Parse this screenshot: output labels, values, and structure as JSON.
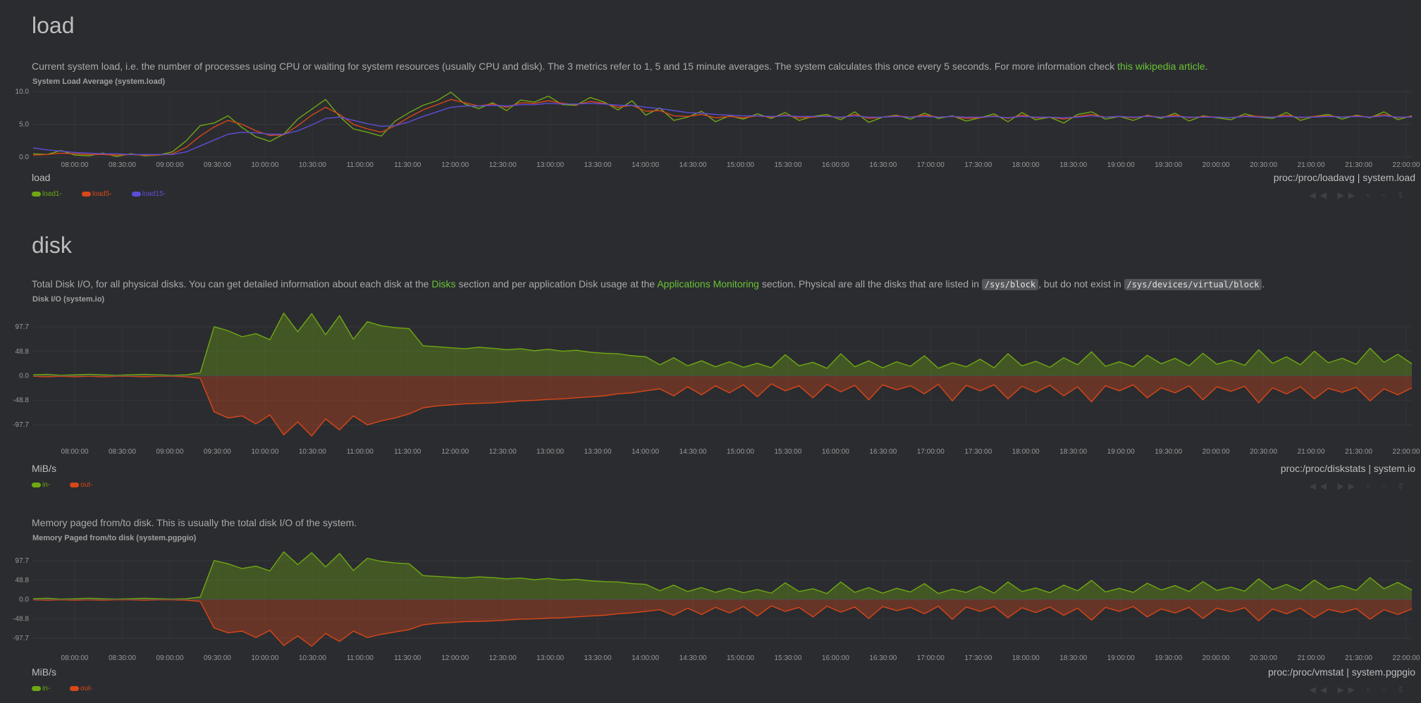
{
  "colors": {
    "green": "#6fa812",
    "red": "#d84718",
    "blue": "#5c4ed6",
    "link": "#69c335"
  },
  "load": {
    "title": "load",
    "desc_before": "Current system load, i.e. the number of processes using CPU or waiting for system resources (usually CPU and disk). The 3 metrics refer to 1, 5 and 15 minute averages. The system calculates this once every 5 seconds. For more information check ",
    "desc_link": "this wikipedia article",
    "desc_after": ".",
    "chart_title": "System Load Average (system.load)",
    "units": "load",
    "source": "proc:/proc/loadavg | system.load",
    "legend": [
      {
        "label": "load1",
        "suffix": " -"
      },
      {
        "label": "load5",
        "suffix": " -"
      },
      {
        "label": "load15",
        "suffix": " -"
      }
    ]
  },
  "disk": {
    "title": "disk",
    "desc_p1": "Total Disk I/O, for all physical disks. You can get detailed information about each disk at the ",
    "desc_link1": "Disks",
    "desc_p2": " section and per application Disk usage at the ",
    "desc_link2": "Applications Monitoring",
    "desc_p3": " section. Physical are all the disks that are listed in ",
    "desc_code1": "/sys/block",
    "desc_p4": ", but do not exist in ",
    "desc_code2": "/sys/devices/virtual/block",
    "desc_p5": ".",
    "chart_title": "Disk I/O (system.io)",
    "units": "MiB/s",
    "source": "proc:/proc/diskstats | system.io",
    "legend": [
      {
        "label": "in",
        "suffix": " -"
      },
      {
        "label": "out",
        "suffix": " -"
      }
    ]
  },
  "pgpgio": {
    "desc": "Memory paged from/to disk. This is usually the total disk I/O of the system.",
    "chart_title": "Memory Paged from/to disk (system.pgpgio)",
    "units": "MiB/s",
    "source": "proc:/proc/vmstat | system.pgpgio",
    "legend": [
      {
        "label": "in",
        "suffix": " -"
      },
      {
        "label": "out",
        "suffix": " -"
      }
    ]
  },
  "toolbar": {
    "glyphs": "◀◀ ▶▶ + − ⇕"
  },
  "chart_data": [
    {
      "type": "line",
      "id": "system.load",
      "title": "System Load Average (system.load)",
      "ylabel": "load",
      "ylim": [
        0,
        10
      ],
      "yticks": [
        "0.0",
        "5.0",
        "10.0"
      ],
      "xlabels": [
        "08:00:00",
        "08:30:00",
        "09:00:00",
        "09:30:00",
        "10:00:00",
        "10:30:00",
        "11:00:00",
        "11:30:00",
        "12:00:00",
        "12:30:00",
        "13:00:00",
        "13:30:00",
        "14:00:00",
        "14:30:00",
        "15:00:00",
        "15:30:00",
        "16:00:00",
        "16:30:00",
        "17:00:00",
        "17:30:00",
        "18:00:00",
        "18:30:00",
        "19:00:00",
        "19:30:00",
        "20:00:00",
        "20:30:00",
        "21:00:00",
        "21:30:00",
        "22:00:00"
      ],
      "series": [
        {
          "name": "load1",
          "color": "#6fa812",
          "values": [
            0.5,
            0.4,
            1.0,
            0.3,
            0.2,
            0.6,
            0.1,
            0.5,
            0.2,
            0.3,
            0.8,
            2.5,
            4.8,
            5.2,
            6.3,
            4.5,
            3.1,
            2.4,
            3.5,
            5.8,
            7.3,
            8.8,
            6.2,
            4.3,
            3.8,
            3.2,
            5.5,
            6.8,
            7.9,
            8.6,
            9.9,
            8.1,
            7.4,
            8.3,
            7.1,
            8.7,
            8.4,
            9.3,
            8.0,
            7.9,
            9.1,
            8.4,
            7.2,
            8.6,
            6.4,
            7.5,
            5.6,
            6.1,
            7.0,
            5.4,
            6.3,
            5.8,
            6.6,
            5.9,
            6.8,
            5.6,
            6.2,
            6.5,
            5.7,
            6.9,
            5.3,
            6.1,
            6.4,
            5.8,
            6.7,
            5.9,
            6.3,
            5.5,
            6.0,
            6.6,
            5.4,
            6.8,
            5.7,
            6.1,
            5.2,
            6.5,
            6.9,
            5.8,
            6.2,
            5.6,
            6.4,
            5.9,
            6.7,
            5.5,
            6.3,
            6.0,
            5.7,
            6.6,
            6.1,
            5.9,
            6.8,
            5.6,
            6.2,
            6.5,
            5.8,
            6.4,
            6.0,
            6.9,
            5.7,
            6.3
          ]
        },
        {
          "name": "load5",
          "color": "#d84718",
          "values": [
            0.3,
            0.4,
            0.6,
            0.5,
            0.4,
            0.4,
            0.3,
            0.4,
            0.3,
            0.3,
            0.5,
            1.5,
            3.2,
            4.6,
            5.6,
            5.0,
            4.0,
            3.3,
            3.4,
            4.8,
            6.4,
            7.6,
            6.5,
            5.0,
            4.3,
            3.8,
            4.8,
            6.1,
            7.2,
            8.0,
            8.8,
            8.3,
            7.8,
            8.1,
            7.6,
            8.3,
            8.2,
            8.6,
            8.2,
            8.0,
            8.5,
            8.2,
            7.6,
            7.9,
            7.0,
            7.1,
            6.3,
            6.2,
            6.5,
            6.0,
            6.2,
            6.0,
            6.3,
            6.1,
            6.4,
            6.0,
            6.1,
            6.3,
            6.0,
            6.5,
            5.9,
            6.1,
            6.3,
            6.1,
            6.4,
            6.1,
            6.2,
            5.9,
            6.0,
            6.3,
            5.9,
            6.4,
            6.0,
            6.1,
            5.8,
            6.2,
            6.5,
            6.1,
            6.2,
            6.0,
            6.3,
            6.1,
            6.4,
            6.0,
            6.2,
            6.1,
            6.0,
            6.3,
            6.2,
            6.1,
            6.4,
            6.0,
            6.2,
            6.3,
            6.1,
            6.3,
            6.1,
            6.5,
            6.0,
            6.2
          ]
        },
        {
          "name": "load15",
          "color": "#5c4ed6",
          "values": [
            1.4,
            1.1,
            0.9,
            0.7,
            0.6,
            0.5,
            0.5,
            0.4,
            0.4,
            0.4,
            0.4,
            0.8,
            1.7,
            2.6,
            3.5,
            3.8,
            3.7,
            3.5,
            3.5,
            4.0,
            4.9,
            5.9,
            6.1,
            5.6,
            5.1,
            4.7,
            4.8,
            5.4,
            6.2,
            6.9,
            7.6,
            7.8,
            7.8,
            7.9,
            7.8,
            8.0,
            8.0,
            8.2,
            8.1,
            8.1,
            8.2,
            8.1,
            7.9,
            7.9,
            7.6,
            7.4,
            7.1,
            6.8,
            6.7,
            6.5,
            6.4,
            6.3,
            6.3,
            6.2,
            6.3,
            6.2,
            6.2,
            6.2,
            6.1,
            6.3,
            6.1,
            6.1,
            6.2,
            6.1,
            6.2,
            6.1,
            6.2,
            6.1,
            6.1,
            6.2,
            6.0,
            6.2,
            6.1,
            6.1,
            6.0,
            6.1,
            6.3,
            6.1,
            6.2,
            6.1,
            6.2,
            6.1,
            6.2,
            6.1,
            6.1,
            6.1,
            6.0,
            6.2,
            6.1,
            6.1,
            6.2,
            6.1,
            6.1,
            6.2,
            6.1,
            6.2,
            6.1,
            6.3,
            6.1,
            6.1
          ]
        }
      ]
    },
    {
      "type": "area",
      "id": "system.io",
      "title": "Disk I/O (system.io)",
      "ylabel": "MiB/s",
      "ylim": [
        -97.7,
        97.7
      ],
      "yticks": [
        "97.7",
        "48.8",
        "0.0",
        "-48.8",
        "-97.7"
      ],
      "xlabels": [
        "08:00:00",
        "08:30:00",
        "09:00:00",
        "09:30:00",
        "10:00:00",
        "10:30:00",
        "11:00:00",
        "11:30:00",
        "12:00:00",
        "12:30:00",
        "13:00:00",
        "13:30:00",
        "14:00:00",
        "14:30:00",
        "15:00:00",
        "15:30:00",
        "16:00:00",
        "16:30:00",
        "17:00:00",
        "17:30:00",
        "18:00:00",
        "18:30:00",
        "19:00:00",
        "19:30:00",
        "20:00:00",
        "20:30:00",
        "21:00:00",
        "21:30:00",
        "22:00:00"
      ],
      "series": [
        {
          "name": "in",
          "color": "#6fa812",
          "values": [
            2,
            3,
            1,
            2,
            3,
            2,
            1,
            2,
            3,
            2,
            1,
            2,
            6,
            98,
            90,
            78,
            84,
            72,
            125,
            88,
            124,
            82,
            120,
            73,
            108,
            100,
            96,
            94,
            60,
            58,
            56,
            54,
            57,
            55,
            52,
            54,
            50,
            53,
            49,
            51,
            47,
            45,
            44,
            40,
            38,
            22,
            36,
            20,
            30,
            18,
            28,
            17,
            25,
            16,
            42,
            20,
            27,
            15,
            44,
            18,
            30,
            16,
            28,
            19,
            40,
            15,
            26,
            18,
            33,
            16,
            44,
            20,
            29,
            17,
            36,
            22,
            48,
            19,
            28,
            18,
            41,
            24,
            35,
            20,
            45,
            23,
            31,
            21,
            52,
            25,
            38,
            22,
            49,
            26,
            35,
            23,
            55,
            27,
            43,
            24
          ]
        },
        {
          "name": "out",
          "color": "#d84718",
          "values": [
            -1,
            -2,
            -1,
            -2,
            -1,
            -2,
            -1,
            -1,
            -2,
            -1,
            -1,
            -2,
            -5,
            -72,
            -84,
            -80,
            -96,
            -78,
            -118,
            -92,
            -120,
            -86,
            -108,
            -80,
            -98,
            -90,
            -84,
            -76,
            -64,
            -60,
            -58,
            -56,
            -55,
            -54,
            -52,
            -50,
            -49,
            -47,
            -46,
            -44,
            -42,
            -40,
            -36,
            -34,
            -30,
            -26,
            -40,
            -22,
            -38,
            -20,
            -34,
            -18,
            -42,
            -16,
            -30,
            -20,
            -44,
            -17,
            -32,
            -19,
            -48,
            -18,
            -28,
            -20,
            -36,
            -17,
            -50,
            -19,
            -30,
            -18,
            -46,
            -21,
            -33,
            -19,
            -40,
            -22,
            -52,
            -20,
            -30,
            -18,
            -44,
            -24,
            -34,
            -20,
            -48,
            -22,
            -31,
            -21,
            -54,
            -24,
            -36,
            -22,
            -46,
            -25,
            -33,
            -23,
            -50,
            -26,
            -38,
            -24
          ]
        }
      ]
    },
    {
      "type": "area",
      "id": "system.pgpgio",
      "title": "Memory Paged from/to disk (system.pgpgio)",
      "ylabel": "MiB/s",
      "ylim": [
        -97.7,
        97.7
      ],
      "yticks": [
        "97.7",
        "48.8",
        "0.0",
        "-48.8",
        "-97.7"
      ],
      "xlabels": [
        "08:00:00",
        "08:30:00",
        "09:00:00",
        "09:30:00",
        "10:00:00",
        "10:30:00",
        "11:00:00",
        "11:30:00",
        "12:00:00",
        "12:30:00",
        "13:00:00",
        "13:30:00",
        "14:00:00",
        "14:30:00",
        "15:00:00",
        "15:30:00",
        "16:00:00",
        "16:30:00",
        "17:00:00",
        "17:30:00",
        "18:00:00",
        "18:30:00",
        "19:00:00",
        "19:30:00",
        "20:00:00",
        "20:30:00",
        "21:00:00",
        "21:30:00",
        "22:00:00"
      ],
      "series": [
        {
          "name": "in",
          "color": "#6fa812",
          "values": [
            2,
            3,
            1,
            2,
            3,
            2,
            1,
            2,
            3,
            2,
            1,
            2,
            6,
            98,
            90,
            78,
            84,
            72,
            120,
            88,
            118,
            82,
            116,
            73,
            104,
            96,
            92,
            90,
            60,
            58,
            56,
            54,
            57,
            55,
            52,
            54,
            50,
            53,
            49,
            51,
            47,
            45,
            44,
            40,
            38,
            22,
            36,
            20,
            30,
            18,
            28,
            17,
            25,
            16,
            42,
            20,
            27,
            15,
            44,
            18,
            30,
            16,
            28,
            19,
            40,
            15,
            26,
            18,
            33,
            16,
            44,
            20,
            29,
            17,
            36,
            22,
            48,
            19,
            28,
            18,
            41,
            24,
            35,
            20,
            45,
            23,
            31,
            21,
            52,
            25,
            38,
            22,
            49,
            26,
            35,
            23,
            55,
            27,
            43,
            24
          ]
        },
        {
          "name": "out",
          "color": "#d84718",
          "values": [
            -1,
            -2,
            -1,
            -2,
            -1,
            -2,
            -1,
            -1,
            -2,
            -1,
            -1,
            -2,
            -5,
            -72,
            -84,
            -80,
            -96,
            -78,
            -116,
            -92,
            -118,
            -86,
            -106,
            -80,
            -96,
            -88,
            -82,
            -76,
            -64,
            -60,
            -58,
            -56,
            -55,
            -54,
            -52,
            -50,
            -49,
            -47,
            -46,
            -44,
            -42,
            -40,
            -36,
            -34,
            -30,
            -26,
            -40,
            -22,
            -38,
            -20,
            -34,
            -18,
            -42,
            -16,
            -30,
            -20,
            -44,
            -17,
            -32,
            -19,
            -48,
            -18,
            -28,
            -20,
            -36,
            -17,
            -50,
            -19,
            -30,
            -18,
            -46,
            -21,
            -33,
            -19,
            -40,
            -22,
            -52,
            -20,
            -30,
            -18,
            -44,
            -24,
            -34,
            -20,
            -48,
            -22,
            -31,
            -21,
            -54,
            -24,
            -36,
            -22,
            -46,
            -25,
            -33,
            -23,
            -50,
            -26,
            -38,
            -24
          ]
        }
      ]
    }
  ]
}
